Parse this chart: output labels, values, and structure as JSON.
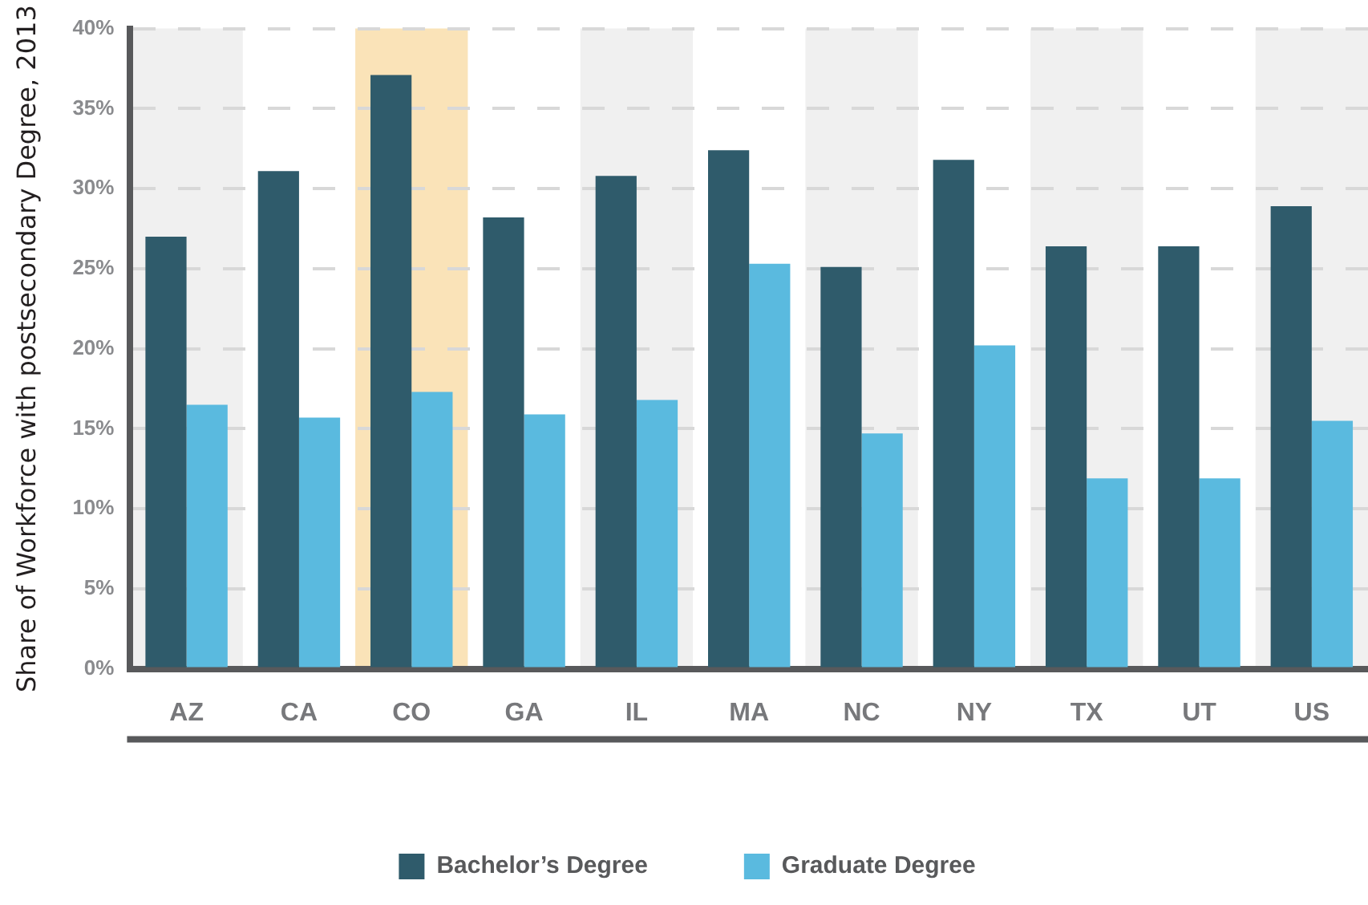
{
  "chart_data": {
    "type": "bar",
    "ylabel": "Share of Workforce with postsecondary Degree, 2013",
    "categories": [
      "AZ",
      "CA",
      "CO",
      "GA",
      "IL",
      "MA",
      "NC",
      "NY",
      "TX",
      "UT",
      "US"
    ],
    "series": [
      {
        "name": "Bachelor’s Degree",
        "color": "#2f5b6b",
        "values": [
          27.0,
          31.1,
          37.1,
          28.2,
          30.8,
          32.4,
          25.1,
          31.8,
          26.4,
          26.4,
          28.9
        ]
      },
      {
        "name": "Graduate Degree",
        "color": "#5abadf",
        "values": [
          16.5,
          15.7,
          17.3,
          15.9,
          16.8,
          25.3,
          14.7,
          20.2,
          11.9,
          11.9,
          15.5
        ]
      }
    ],
    "ylim": [
      0,
      40
    ],
    "yticks": [
      {
        "value": 0,
        "label": "0%"
      },
      {
        "value": 5,
        "label": "5%"
      },
      {
        "value": 10,
        "label": "10%"
      },
      {
        "value": 15,
        "label": "15%"
      },
      {
        "value": 20,
        "label": "20%"
      },
      {
        "value": 25,
        "label": "25%"
      },
      {
        "value": 30,
        "label": "30%"
      },
      {
        "value": 35,
        "label": "35%"
      },
      {
        "value": 40,
        "label": "40%"
      }
    ],
    "bands": [
      {
        "axis": "x",
        "from": "AZ",
        "to": "AZ",
        "color": "#f0f0f0"
      },
      {
        "axis": "x",
        "from": "CO",
        "to": "CO",
        "color": "#fae3b8"
      },
      {
        "axis": "x",
        "from": "IL",
        "to": "IL",
        "color": "#f0f0f0"
      },
      {
        "axis": "x",
        "from": "NC",
        "to": "NC",
        "color": "#f0f0f0"
      },
      {
        "axis": "x",
        "from": "TX",
        "to": "TX",
        "color": "#f0f0f0"
      },
      {
        "axis": "x",
        "from": "US",
        "to": "US",
        "color": "#f0f0f0"
      }
    ],
    "grid": "y",
    "legend": "bottom"
  }
}
